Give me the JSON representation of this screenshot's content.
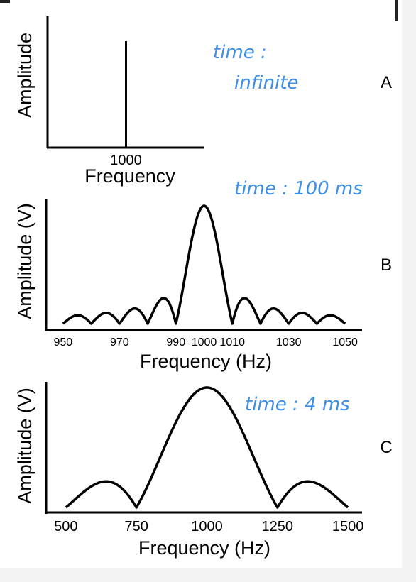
{
  "chart_data": [
    {
      "type": "line",
      "panel_label": "A",
      "annotation": [
        "time :",
        "infinite"
      ],
      "xlabel": "Frequency",
      "ylabel": "Amplitude",
      "x_ticks": [
        1000
      ],
      "xlim": [
        992,
        1008
      ],
      "series": [
        {
          "x": [
            1000,
            1000
          ],
          "y": [
            0,
            1
          ]
        }
      ],
      "grid": false
    },
    {
      "type": "line",
      "panel_label": "B",
      "annotation": [
        "time : 100 ms"
      ],
      "xlabel": "Frequency (Hz)",
      "ylabel": "Amplitude (V)",
      "x_ticks": [
        950,
        970,
        990,
        1000,
        1010,
        1030,
        1050
      ],
      "xlim": [
        944,
        1056
      ],
      "sinc": {
        "center": 1000,
        "first_zero_offset": 10,
        "range": [
          950,
          1050
        ]
      },
      "grid": false
    },
    {
      "type": "line",
      "panel_label": "C",
      "annotation": [
        "time : 4 ms"
      ],
      "xlabel": "Frequency (Hz)",
      "ylabel": "Amplitude (V)",
      "x_ticks": [
        500,
        750,
        1000,
        1250,
        1500
      ],
      "xlim": [
        430,
        1550
      ],
      "sinc": {
        "center": 1000,
        "first_zero_offset": 250,
        "range": [
          500,
          1500
        ]
      },
      "grid": false
    }
  ]
}
